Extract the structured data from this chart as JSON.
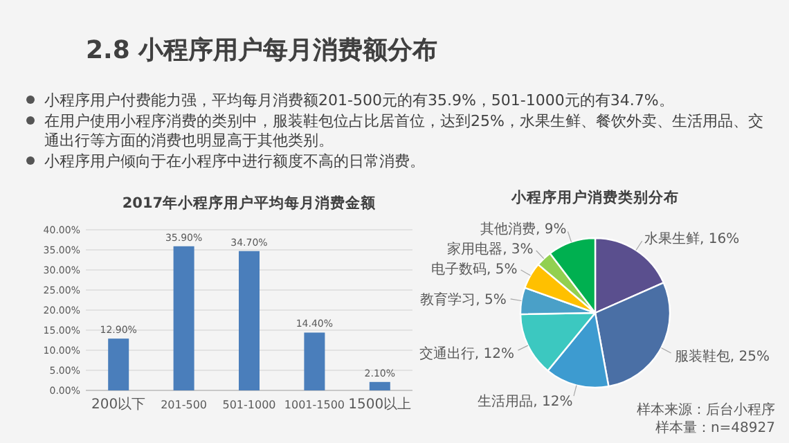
{
  "chart_data": [
    {
      "type": "other",
      "title": "2.8 小程序用户每月消费额分布",
      "annotations": [
        "小程序用户付费能力强，平均每月消费额201-500元的有35.9%，501-1000元的有34.7%。",
        "在用户使用小程序消费的类别中，服装鞋包位占比居首位，达到25%，水果生鲜、餐饮外卖、生活用品、交通出行等方面的消费也明显高于其他类别。",
        "小程序用户倾向于在小程序中进行额度不高的日常消费。"
      ]
    },
    {
      "type": "bar",
      "title": "2017年小程序用户平均每月消费金额",
      "categories": [
        "200以下",
        "201-500",
        "501-1000",
        "1001-1500",
        "1500以上"
      ],
      "values": [
        12.9,
        35.9,
        34.7,
        14.4,
        2.1
      ],
      "value_labels": [
        "12.90%",
        "35.90%",
        "34.70%",
        "14.40%",
        "2.10%"
      ],
      "color": "#4a7ebb",
      "ylim": [
        0,
        40
      ],
      "yticks": [
        {
          "value": 0,
          "label": "0.00%"
        },
        {
          "value": 5,
          "label": "5.00%"
        },
        {
          "value": 10,
          "label": "10.00%"
        },
        {
          "value": 15,
          "label": "15.00%"
        },
        {
          "value": 20,
          "label": "20.00%"
        },
        {
          "value": 25,
          "label": "25.00%"
        },
        {
          "value": 30,
          "label": "30.00%"
        },
        {
          "value": 35,
          "label": "35.00%"
        },
        {
          "value": 40,
          "label": "40.00%"
        }
      ],
      "grid": "y"
    },
    {
      "type": "pie",
      "title": "小程序用户消费类别分布",
      "categories": [
        "水果生鲜",
        "服装鞋包",
        "生活用品",
        "交通出行",
        "教育学习",
        "电子数码",
        "家用电器",
        "其他消费"
      ],
      "values": [
        16,
        25,
        12,
        12,
        5,
        5,
        3,
        9
      ],
      "value_labels": [
        "16%",
        "25%",
        "12%",
        "12%",
        "5%",
        "5%",
        "3%",
        "9%"
      ],
      "colors": [
        "#5a4f8e",
        "#4a6fa5",
        "#3d9bd0",
        "#3cc8c0",
        "#4aa0c8",
        "#ffc000",
        "#92d050",
        "#00b050"
      ],
      "annotations": [
        "样本来源：后台小程序",
        "样本量：n=48927"
      ]
    }
  ]
}
